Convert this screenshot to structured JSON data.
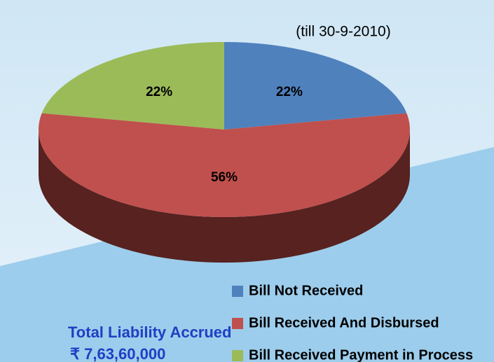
{
  "chart_data": {
    "type": "pie",
    "subtitle": "(till 30-9-2010)",
    "categories": [
      "Bill Not Received",
      "Bill Received And Disbursed",
      "Bill Received Payment in Process"
    ],
    "values": [
      22,
      56,
      22
    ],
    "value_labels": [
      "22%",
      "56%",
      "22%"
    ],
    "colors": [
      "#4f81bd",
      "#c0504d",
      "#9bbb59"
    ],
    "side_colors": [
      "#2c4d75",
      "#57221f",
      "#5b7033"
    ],
    "annotations": [
      "Total Liability Accrued",
      "₹ 7,63,60,000"
    ]
  }
}
